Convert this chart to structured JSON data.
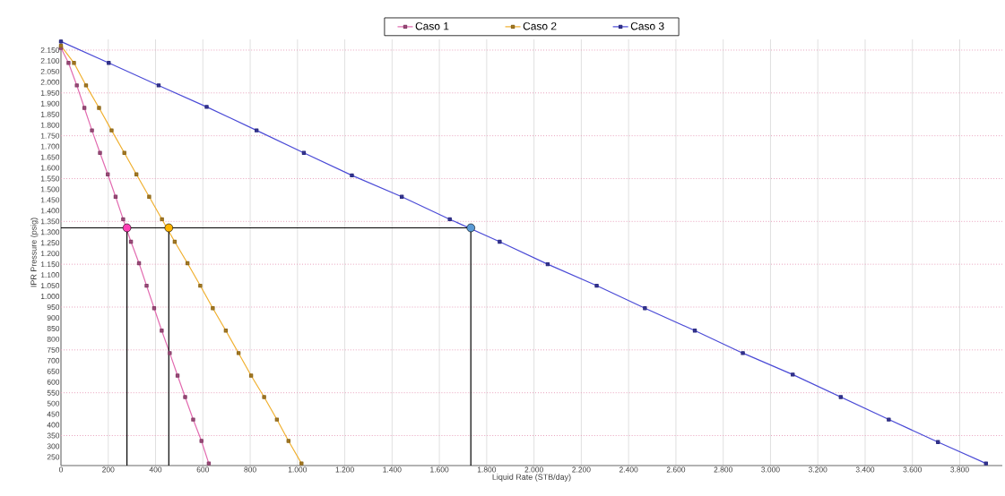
{
  "chart_data": {
    "type": "line",
    "xlabel": "Liquid Rate  (STB/day)",
    "ylabel": "IPR Pressure  (psig)",
    "xlim": [
      0,
      3980
    ],
    "ylim": [
      210,
      2200
    ],
    "xticks": [
      0,
      200,
      400,
      600,
      800,
      {
        "value": 1000,
        "label": "1.000"
      },
      {
        "value": 1200,
        "label": "1.200"
      },
      {
        "value": 1400,
        "label": "1.400"
      },
      {
        "value": 1600,
        "label": "1.600"
      },
      {
        "value": 1800,
        "label": "1.800"
      },
      {
        "value": 2000,
        "label": "2.000"
      },
      {
        "value": 2200,
        "label": "2.200"
      },
      {
        "value": 2400,
        "label": "2.400"
      },
      {
        "value": 2600,
        "label": "2.600"
      },
      {
        "value": 2800,
        "label": "2.800"
      },
      {
        "value": 3000,
        "label": "3.000"
      },
      {
        "value": 3200,
        "label": "3.200"
      },
      {
        "value": 3400,
        "label": "3.400"
      },
      {
        "value": 3600,
        "label": "3.600"
      },
      {
        "value": 3800,
        "label": "3.800"
      }
    ],
    "yticks": [
      250,
      300,
      350,
      400,
      450,
      500,
      550,
      600,
      650,
      700,
      750,
      800,
      850,
      900,
      950,
      {
        "value": 1000,
        "label": "1.000"
      },
      {
        "value": 1050,
        "label": "1.050"
      },
      {
        "value": 1100,
        "label": "1.100"
      },
      {
        "value": 1150,
        "label": "1.150"
      },
      {
        "value": 1200,
        "label": "1.200"
      },
      {
        "value": 1250,
        "label": "1.250"
      },
      {
        "value": 1300,
        "label": "1.300"
      },
      {
        "value": 1350,
        "label": "1.350"
      },
      {
        "value": 1400,
        "label": "1.400"
      },
      {
        "value": 1450,
        "label": "1.450"
      },
      {
        "value": 1500,
        "label": "1.500"
      },
      {
        "value": 1550,
        "label": "1.550"
      },
      {
        "value": 1600,
        "label": "1.600"
      },
      {
        "value": 1650,
        "label": "1.650"
      },
      {
        "value": 1700,
        "label": "1.700"
      },
      {
        "value": 1750,
        "label": "1.750"
      },
      {
        "value": 1800,
        "label": "1.800"
      },
      {
        "value": 1850,
        "label": "1.850"
      },
      {
        "value": 1900,
        "label": "1.900"
      },
      {
        "value": 1950,
        "label": "1.950"
      },
      {
        "value": 2000,
        "label": "2.000"
      },
      {
        "value": 2050,
        "label": "2.050"
      },
      {
        "value": 2100,
        "label": "2.100"
      },
      {
        "value": 2150,
        "label": "2.150"
      }
    ],
    "grid": "x",
    "legend": "top",
    "marker": "square",
    "ref_lines": [
      {
        "axis": "y",
        "value": 350,
        "color": "#e8a0bc",
        "line_style": "dotted"
      },
      {
        "axis": "y",
        "value": 550,
        "color": "#e8a0bc",
        "line_style": "dotted"
      },
      {
        "axis": "y",
        "value": 750,
        "color": "#e8a0bc",
        "line_style": "dotted"
      },
      {
        "axis": "y",
        "value": 950,
        "color": "#e8a0bc",
        "line_style": "dotted"
      },
      {
        "axis": "y",
        "value": 1150,
        "color": "#e8a0bc",
        "line_style": "dotted"
      },
      {
        "axis": "y",
        "value": 1350,
        "color": "#e8a0bc",
        "line_style": "dotted"
      },
      {
        "axis": "y",
        "value": 1550,
        "color": "#e8a0bc",
        "line_style": "dotted"
      },
      {
        "axis": "y",
        "value": 1750,
        "color": "#e8a0bc",
        "line_style": "dotted"
      },
      {
        "axis": "y",
        "value": 1950,
        "color": "#e8a0bc",
        "line_style": "dotted"
      },
      {
        "axis": "y",
        "value": 2150,
        "color": "#e8a0bc",
        "line_style": "dotted"
      }
    ],
    "series": [
      {
        "name": "Caso 1",
        "color": "#e26bb0",
        "x": [
          0,
          32,
          67,
          99,
          131,
          165,
          198,
          231,
          263,
          296,
          330,
          362,
          394,
          426,
          460,
          493,
          525,
          559,
          594,
          625
        ],
        "values": [
          2160,
          2090,
          1985,
          1880,
          1775,
          1670,
          1570,
          1465,
          1360,
          1255,
          1155,
          1050,
          945,
          840,
          735,
          630,
          530,
          425,
          325,
          220
        ]
      },
      {
        "name": "Caso 2",
        "color": "#f0b030",
        "x": [
          0,
          55,
          106,
          161,
          214,
          268,
          319,
          373,
          427,
          481,
          535,
          589,
          642,
          697,
          751,
          804,
          859,
          913,
          962,
          1017
        ],
        "values": [
          2170,
          2090,
          1985,
          1880,
          1775,
          1670,
          1570,
          1465,
          1360,
          1255,
          1155,
          1050,
          945,
          840,
          735,
          630,
          530,
          425,
          325,
          220
        ]
      },
      {
        "name": "Caso 3",
        "color": "#4a4ad6",
        "x": [
          0,
          202,
          413,
          616,
          827,
          1027,
          1230,
          1441,
          1644,
          1855,
          2058,
          2265,
          2469,
          2680,
          2883,
          3094,
          3297,
          3500,
          3708,
          3911
        ],
        "values": [
          2190,
          2090,
          1985,
          1885,
          1775,
          1670,
          1565,
          1465,
          1360,
          1255,
          1150,
          1050,
          945,
          840,
          735,
          635,
          530,
          425,
          320,
          220
        ]
      },
      {
        "type": "line",
        "marker": "none",
        "color": "#000000",
        "x": [
          0,
          1733
        ],
        "values": [
          1320,
          1320
        ]
      },
      {
        "type": "line",
        "marker": "none",
        "color": "#000000",
        "x": [
          279,
          279
        ],
        "values": [
          1320,
          210
        ]
      },
      {
        "type": "line",
        "marker": "none",
        "color": "#000000",
        "x": [
          456,
          456
        ],
        "values": [
          1320,
          210
        ]
      },
      {
        "type": "line",
        "marker": "none",
        "color": "#000000",
        "x": [
          1733,
          1733
        ],
        "values": [
          1320,
          210
        ]
      },
      {
        "type": "scatter",
        "marker": "circle",
        "x": [
          279,
          456,
          1733
        ],
        "values": [
          1320,
          1320,
          1320
        ],
        "colors": [
          "#ff3eb5",
          "#ffb400",
          "#5b9bd5"
        ]
      }
    ]
  }
}
